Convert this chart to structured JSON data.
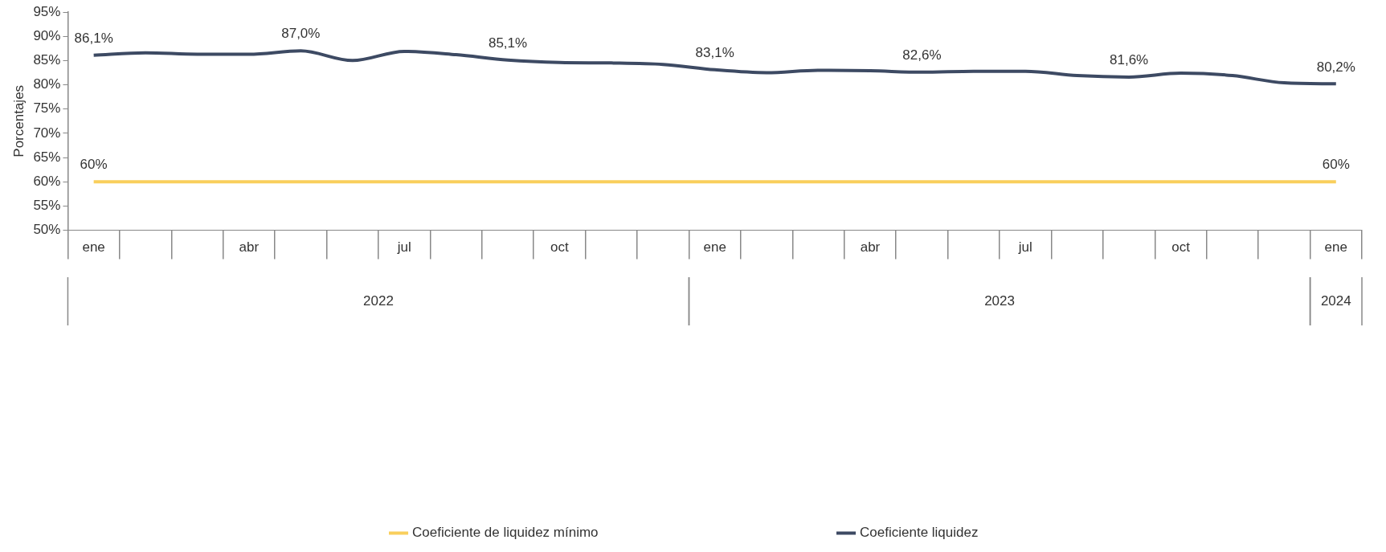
{
  "chart_data": {
    "type": "line",
    "ylabel": "Porcentajes",
    "categories": [
      "ene",
      null,
      null,
      "abr",
      null,
      null,
      "jul",
      null,
      null,
      "oct",
      null,
      null,
      "ene",
      null,
      null,
      "abr",
      null,
      null,
      "jul",
      null,
      null,
      "oct",
      null,
      null,
      "ene"
    ],
    "series": [
      {
        "name": "Coeficiente de liquidez mínimo",
        "color": "#f9cf5c",
        "values": [
          60,
          60,
          60,
          60,
          60,
          60,
          60,
          60,
          60,
          60,
          60,
          60,
          60,
          60,
          60,
          60,
          60,
          60,
          60,
          60,
          60,
          60,
          60,
          60,
          60
        ],
        "value_labels": [
          "60%",
          null,
          null,
          null,
          null,
          null,
          null,
          null,
          null,
          null,
          null,
          null,
          null,
          null,
          null,
          null,
          null,
          null,
          null,
          null,
          null,
          null,
          null,
          null,
          "60%"
        ]
      },
      {
        "name": "Coeficiente liquidez",
        "color": "#3d4a63",
        "values": [
          86.1,
          86.6,
          86.3,
          86.3,
          87.0,
          85.0,
          86.9,
          86.2,
          85.1,
          84.6,
          84.5,
          84.2,
          83.1,
          82.5,
          83.0,
          82.9,
          82.6,
          82.8,
          82.8,
          81.9,
          81.6,
          82.4,
          81.9,
          80.4,
          80.2
        ],
        "value_labels": [
          "86,1%",
          null,
          null,
          null,
          "87,0%",
          null,
          null,
          null,
          "85,1%",
          null,
          null,
          null,
          "83,1%",
          null,
          null,
          null,
          "82,6%",
          null,
          null,
          null,
          "81,6%",
          null,
          null,
          null,
          "80,2%"
        ]
      }
    ],
    "ylim": [
      50,
      95
    ],
    "yticks": [
      {
        "value": 50,
        "label": "50%"
      },
      {
        "value": 55,
        "label": "55%"
      },
      {
        "value": 60,
        "label": "60%"
      },
      {
        "value": 65,
        "label": "65%"
      },
      {
        "value": 70,
        "label": "70%"
      },
      {
        "value": 75,
        "label": "75%"
      },
      {
        "value": 80,
        "label": "80%"
      },
      {
        "value": 85,
        "label": "85%"
      },
      {
        "value": 90,
        "label": "90%"
      },
      {
        "value": 95,
        "label": "95%"
      }
    ],
    "annotations": [
      "2022",
      "2023",
      "2024"
    ],
    "grid": false,
    "legend": "bottom",
    "marker": "none",
    "line_style": "solid"
  }
}
